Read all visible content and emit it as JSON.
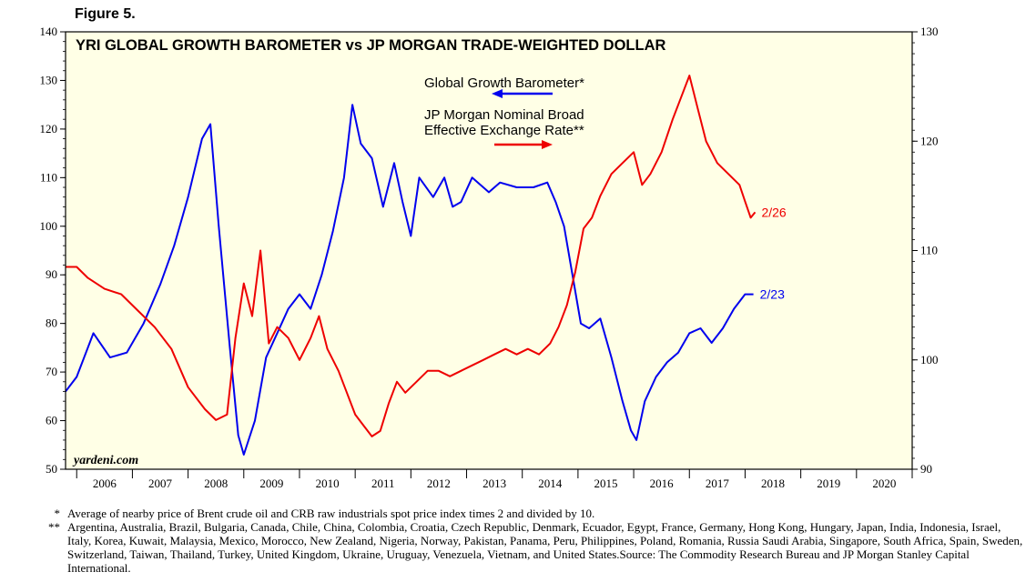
{
  "figure_label": "Figure 5.",
  "colors": {
    "ggb": "#0000ee",
    "dollar": "#ee0000",
    "plot_bg": "#ffffe6"
  },
  "chart_data": {
    "type": "line",
    "title": "YRI GLOBAL GROWTH BAROMETER vs JP MORGAN TRADE-WEIGHTED DOLLAR",
    "watermark": "yardeni.com",
    "x_ticks": [
      "2006",
      "2007",
      "2008",
      "2009",
      "2010",
      "2011",
      "2012",
      "2013",
      "2014",
      "2015",
      "2016",
      "2017",
      "2018",
      "2019",
      "2020"
    ],
    "xlim": [
      2005.8,
      2021.0
    ],
    "left_axis": {
      "ylim": [
        50,
        140
      ],
      "ticks": [
        "140",
        "130",
        "120",
        "110",
        "100",
        "90",
        "80",
        "70",
        "60",
        "50"
      ]
    },
    "right_axis": {
      "ylim": [
        90,
        130
      ],
      "ticks": [
        "130",
        "120",
        "110",
        "100",
        "90"
      ]
    },
    "legend": {
      "ggb": "Global Growth Barometer*",
      "dollar_line1": "JP Morgan Nominal Broad",
      "dollar_line2": "Effective Exchange Rate**"
    },
    "series": [
      {
        "name": "Global Growth Barometer*",
        "axis": "left",
        "end_label": "2/23",
        "points": [
          [
            2005.8,
            66
          ],
          [
            2006.0,
            69
          ],
          [
            2006.3,
            78
          ],
          [
            2006.6,
            73
          ],
          [
            2006.9,
            74
          ],
          [
            2007.2,
            80
          ],
          [
            2007.5,
            88
          ],
          [
            2007.75,
            96
          ],
          [
            2008.0,
            106
          ],
          [
            2008.25,
            118
          ],
          [
            2008.4,
            121
          ],
          [
            2008.55,
            100
          ],
          [
            2008.75,
            75
          ],
          [
            2008.9,
            57
          ],
          [
            2009.0,
            53
          ],
          [
            2009.2,
            60
          ],
          [
            2009.4,
            73
          ],
          [
            2009.6,
            78
          ],
          [
            2009.8,
            83
          ],
          [
            2010.0,
            86
          ],
          [
            2010.2,
            83
          ],
          [
            2010.4,
            90
          ],
          [
            2010.6,
            99
          ],
          [
            2010.8,
            110
          ],
          [
            2010.95,
            125
          ],
          [
            2011.1,
            117
          ],
          [
            2011.3,
            114
          ],
          [
            2011.5,
            104
          ],
          [
            2011.7,
            113
          ],
          [
            2011.85,
            105
          ],
          [
            2012.0,
            98
          ],
          [
            2012.15,
            110
          ],
          [
            2012.4,
            106
          ],
          [
            2012.6,
            110
          ],
          [
            2012.75,
            104
          ],
          [
            2012.9,
            105
          ],
          [
            2013.1,
            110
          ],
          [
            2013.4,
            107
          ],
          [
            2013.6,
            109
          ],
          [
            2013.9,
            108
          ],
          [
            2014.2,
            108
          ],
          [
            2014.45,
            109
          ],
          [
            2014.6,
            105
          ],
          [
            2014.75,
            100
          ],
          [
            2014.9,
            90
          ],
          [
            2015.05,
            80
          ],
          [
            2015.2,
            79
          ],
          [
            2015.4,
            81
          ],
          [
            2015.6,
            73
          ],
          [
            2015.8,
            64
          ],
          [
            2015.95,
            58
          ],
          [
            2016.05,
            56
          ],
          [
            2016.2,
            64
          ],
          [
            2016.4,
            69
          ],
          [
            2016.6,
            72
          ],
          [
            2016.8,
            74
          ],
          [
            2017.0,
            78
          ],
          [
            2017.2,
            79
          ],
          [
            2017.4,
            76
          ],
          [
            2017.6,
            79
          ],
          [
            2017.8,
            83
          ],
          [
            2018.0,
            86
          ],
          [
            2018.15,
            86
          ]
        ]
      },
      {
        "name": "JP Morgan Nominal Broad Effective Exchange Rate**",
        "axis": "right",
        "end_label": "2/26",
        "points": [
          [
            2005.8,
            108.5
          ],
          [
            2006.0,
            108.5
          ],
          [
            2006.2,
            107.5
          ],
          [
            2006.5,
            106.5
          ],
          [
            2006.8,
            106
          ],
          [
            2007.1,
            104.5
          ],
          [
            2007.4,
            103
          ],
          [
            2007.7,
            101
          ],
          [
            2008.0,
            97.5
          ],
          [
            2008.3,
            95.5
          ],
          [
            2008.5,
            94.5
          ],
          [
            2008.7,
            95
          ],
          [
            2008.85,
            102
          ],
          [
            2009.0,
            107
          ],
          [
            2009.15,
            104
          ],
          [
            2009.3,
            110
          ],
          [
            2009.45,
            101.5
          ],
          [
            2009.6,
            103
          ],
          [
            2009.8,
            102
          ],
          [
            2010.0,
            100
          ],
          [
            2010.2,
            102
          ],
          [
            2010.35,
            104
          ],
          [
            2010.5,
            101
          ],
          [
            2010.7,
            99
          ],
          [
            2010.85,
            97
          ],
          [
            2011.0,
            95
          ],
          [
            2011.15,
            94
          ],
          [
            2011.3,
            93
          ],
          [
            2011.45,
            93.5
          ],
          [
            2011.6,
            96
          ],
          [
            2011.75,
            98
          ],
          [
            2011.9,
            97
          ],
          [
            2012.1,
            98
          ],
          [
            2012.3,
            99
          ],
          [
            2012.5,
            99
          ],
          [
            2012.7,
            98.5
          ],
          [
            2012.9,
            99
          ],
          [
            2013.1,
            99.5
          ],
          [
            2013.3,
            100
          ],
          [
            2013.5,
            100.5
          ],
          [
            2013.7,
            101
          ],
          [
            2013.9,
            100.5
          ],
          [
            2014.1,
            101
          ],
          [
            2014.3,
            100.5
          ],
          [
            2014.5,
            101.5
          ],
          [
            2014.65,
            103
          ],
          [
            2014.8,
            105
          ],
          [
            2014.95,
            108
          ],
          [
            2015.1,
            112
          ],
          [
            2015.25,
            113
          ],
          [
            2015.4,
            115
          ],
          [
            2015.6,
            117
          ],
          [
            2015.8,
            118
          ],
          [
            2016.0,
            119
          ],
          [
            2016.15,
            116
          ],
          [
            2016.3,
            117
          ],
          [
            2016.5,
            119
          ],
          [
            2016.7,
            122
          ],
          [
            2016.85,
            124
          ],
          [
            2017.0,
            126
          ],
          [
            2017.15,
            123
          ],
          [
            2017.3,
            120
          ],
          [
            2017.5,
            118
          ],
          [
            2017.7,
            117
          ],
          [
            2017.9,
            116
          ],
          [
            2018.0,
            114.5
          ],
          [
            2018.1,
            113
          ],
          [
            2018.18,
            113.5
          ]
        ]
      }
    ]
  },
  "footnotes": [
    {
      "mark": "*",
      "text": "Average of nearby price of Brent crude oil and CRB raw industrials spot price index times 2 and divided by 10."
    },
    {
      "mark": "**",
      "text": "Argentina, Australia, Brazil, Bulgaria, Canada, Chile, China, Colombia, Croatia, Czech Republic, Denmark, Ecuador, Egypt, France, Germany, Hong Kong, Hungary, Japan, India, Indonesia, Israel, Italy, Korea, Kuwait, Malaysia, Mexico, Morocco, New Zealand, Nigeria, Norway, Pakistan, Panama, Peru, Philippines, Poland, Romania, Russia Saudi Arabia, Singapore, South Africa, Spain, Sweden, Switzerland, Taiwan, Thailand, Turkey, United Kingdom, Ukraine, Uruguay, Venezuela, Vietnam, and United States.Source: The Commodity Research Bureau and JP Morgan Stanley Capital International."
    }
  ]
}
